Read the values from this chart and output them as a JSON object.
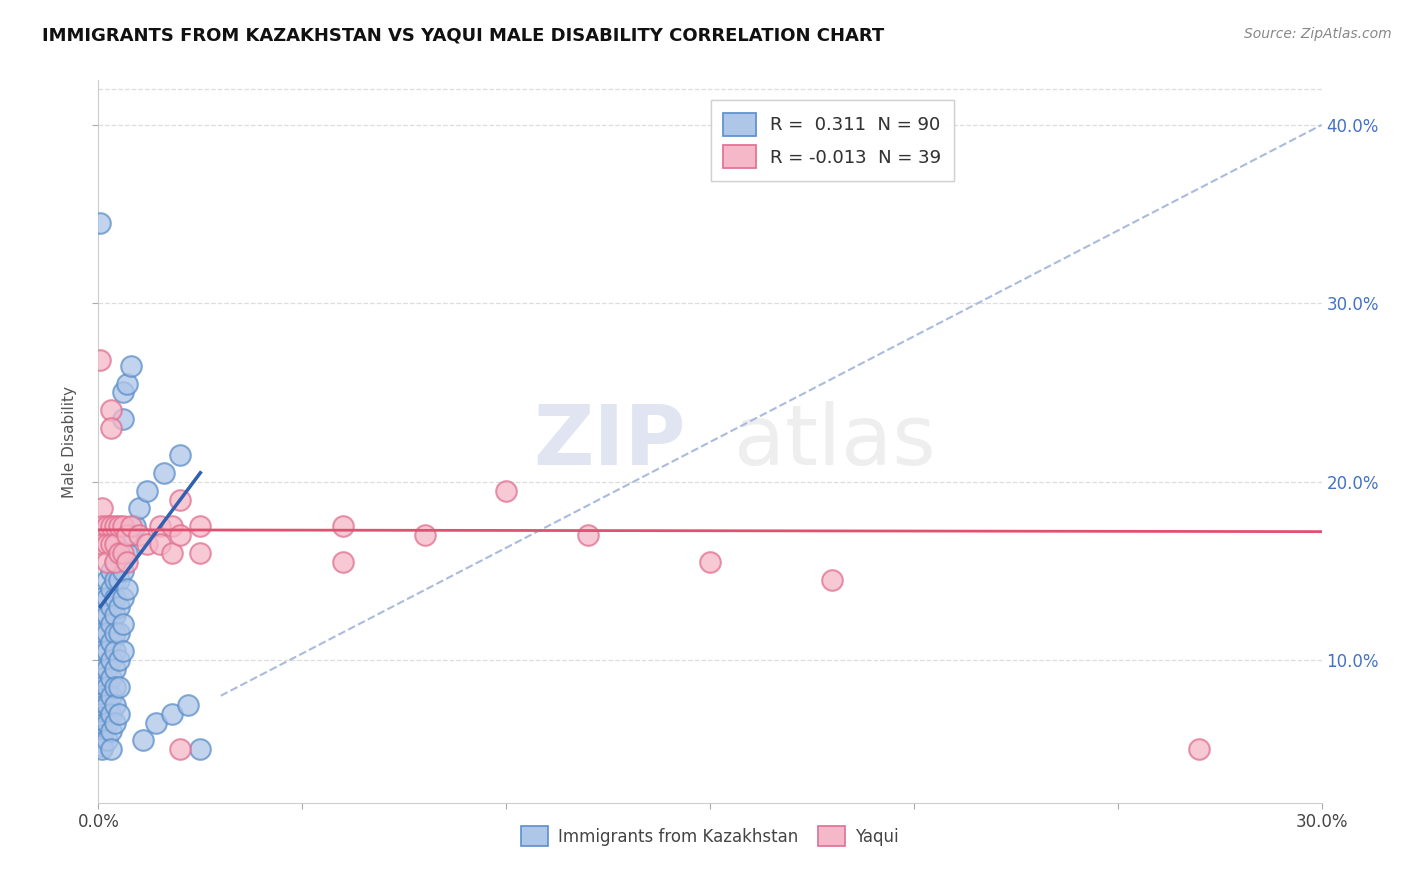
{
  "title": "IMMIGRANTS FROM KAZAKHSTAN VS YAQUI MALE DISABILITY CORRELATION CHART",
  "source": "Source: ZipAtlas.com",
  "ylabel": "Male Disability",
  "x_min": 0.0,
  "x_max": 0.3,
  "y_min": 0.02,
  "y_max": 0.425,
  "y_ticks": [
    0.1,
    0.2,
    0.3,
    0.4
  ],
  "y_tick_labels": [
    "10.0%",
    "20.0%",
    "30.0%",
    "40.0%"
  ],
  "watermark_zip": "ZIP",
  "watermark_atlas": "atlas",
  "blue_face_color": "#aec6e8",
  "blue_edge_color": "#5b8fc9",
  "pink_face_color": "#f5b8c8",
  "pink_edge_color": "#e07090",
  "blue_line_color": "#3060b0",
  "pink_line_color": "#e05070",
  "diag_color": "#aabbdd",
  "grid_color": "#dddddd",
  "blue_scatter": [
    [
      0.0005,
      0.345
    ],
    [
      0.001,
      0.135
    ],
    [
      0.001,
      0.125
    ],
    [
      0.001,
      0.115
    ],
    [
      0.001,
      0.105
    ],
    [
      0.001,
      0.095
    ],
    [
      0.001,
      0.09
    ],
    [
      0.001,
      0.085
    ],
    [
      0.001,
      0.08
    ],
    [
      0.001,
      0.078
    ],
    [
      0.001,
      0.076
    ],
    [
      0.001,
      0.074
    ],
    [
      0.001,
      0.072
    ],
    [
      0.001,
      0.07
    ],
    [
      0.001,
      0.068
    ],
    [
      0.001,
      0.066
    ],
    [
      0.001,
      0.064
    ],
    [
      0.001,
      0.062
    ],
    [
      0.001,
      0.06
    ],
    [
      0.001,
      0.058
    ],
    [
      0.001,
      0.056
    ],
    [
      0.001,
      0.054
    ],
    [
      0.001,
      0.052
    ],
    [
      0.001,
      0.05
    ],
    [
      0.002,
      0.145
    ],
    [
      0.002,
      0.135
    ],
    [
      0.002,
      0.125
    ],
    [
      0.002,
      0.115
    ],
    [
      0.002,
      0.105
    ],
    [
      0.002,
      0.095
    ],
    [
      0.002,
      0.085
    ],
    [
      0.002,
      0.075
    ],
    [
      0.002,
      0.065
    ],
    [
      0.002,
      0.055
    ],
    [
      0.003,
      0.15
    ],
    [
      0.003,
      0.14
    ],
    [
      0.003,
      0.13
    ],
    [
      0.003,
      0.12
    ],
    [
      0.003,
      0.11
    ],
    [
      0.003,
      0.1
    ],
    [
      0.003,
      0.09
    ],
    [
      0.003,
      0.08
    ],
    [
      0.003,
      0.07
    ],
    [
      0.003,
      0.06
    ],
    [
      0.003,
      0.05
    ],
    [
      0.004,
      0.155
    ],
    [
      0.004,
      0.145
    ],
    [
      0.004,
      0.135
    ],
    [
      0.004,
      0.125
    ],
    [
      0.004,
      0.115
    ],
    [
      0.004,
      0.105
    ],
    [
      0.004,
      0.095
    ],
    [
      0.004,
      0.085
    ],
    [
      0.004,
      0.075
    ],
    [
      0.004,
      0.065
    ],
    [
      0.005,
      0.16
    ],
    [
      0.005,
      0.145
    ],
    [
      0.005,
      0.13
    ],
    [
      0.005,
      0.115
    ],
    [
      0.005,
      0.1
    ],
    [
      0.005,
      0.085
    ],
    [
      0.005,
      0.07
    ],
    [
      0.006,
      0.25
    ],
    [
      0.006,
      0.235
    ],
    [
      0.006,
      0.15
    ],
    [
      0.006,
      0.135
    ],
    [
      0.006,
      0.12
    ],
    [
      0.006,
      0.105
    ],
    [
      0.007,
      0.255
    ],
    [
      0.007,
      0.16
    ],
    [
      0.007,
      0.14
    ],
    [
      0.008,
      0.265
    ],
    [
      0.008,
      0.17
    ],
    [
      0.009,
      0.175
    ],
    [
      0.01,
      0.185
    ],
    [
      0.011,
      0.055
    ],
    [
      0.012,
      0.195
    ],
    [
      0.014,
      0.065
    ],
    [
      0.016,
      0.205
    ],
    [
      0.018,
      0.07
    ],
    [
      0.02,
      0.215
    ],
    [
      0.022,
      0.075
    ],
    [
      0.025,
      0.05
    ]
  ],
  "pink_scatter": [
    [
      0.0005,
      0.268
    ],
    [
      0.001,
      0.185
    ],
    [
      0.001,
      0.175
    ],
    [
      0.001,
      0.165
    ],
    [
      0.002,
      0.175
    ],
    [
      0.002,
      0.165
    ],
    [
      0.002,
      0.155
    ],
    [
      0.003,
      0.24
    ],
    [
      0.003,
      0.23
    ],
    [
      0.003,
      0.175
    ],
    [
      0.003,
      0.165
    ],
    [
      0.004,
      0.175
    ],
    [
      0.004,
      0.165
    ],
    [
      0.004,
      0.155
    ],
    [
      0.005,
      0.175
    ],
    [
      0.005,
      0.16
    ],
    [
      0.006,
      0.175
    ],
    [
      0.006,
      0.16
    ],
    [
      0.007,
      0.17
    ],
    [
      0.007,
      0.155
    ],
    [
      0.008,
      0.175
    ],
    [
      0.01,
      0.17
    ],
    [
      0.012,
      0.165
    ],
    [
      0.015,
      0.175
    ],
    [
      0.015,
      0.165
    ],
    [
      0.018,
      0.175
    ],
    [
      0.018,
      0.16
    ],
    [
      0.02,
      0.19
    ],
    [
      0.02,
      0.17
    ],
    [
      0.025,
      0.175
    ],
    [
      0.025,
      0.16
    ],
    [
      0.06,
      0.175
    ],
    [
      0.06,
      0.155
    ],
    [
      0.08,
      0.17
    ],
    [
      0.1,
      0.195
    ],
    [
      0.12,
      0.17
    ],
    [
      0.15,
      0.155
    ],
    [
      0.02,
      0.05
    ],
    [
      0.18,
      0.145
    ],
    [
      0.27,
      0.05
    ]
  ],
  "blue_trendline": [
    [
      0.0005,
      0.13
    ],
    [
      0.025,
      0.205
    ]
  ],
  "pink_trendline": [
    [
      0.0,
      0.173
    ],
    [
      0.3,
      0.172
    ]
  ],
  "diag_line": [
    [
      0.03,
      0.08
    ],
    [
      0.3,
      0.4
    ]
  ]
}
